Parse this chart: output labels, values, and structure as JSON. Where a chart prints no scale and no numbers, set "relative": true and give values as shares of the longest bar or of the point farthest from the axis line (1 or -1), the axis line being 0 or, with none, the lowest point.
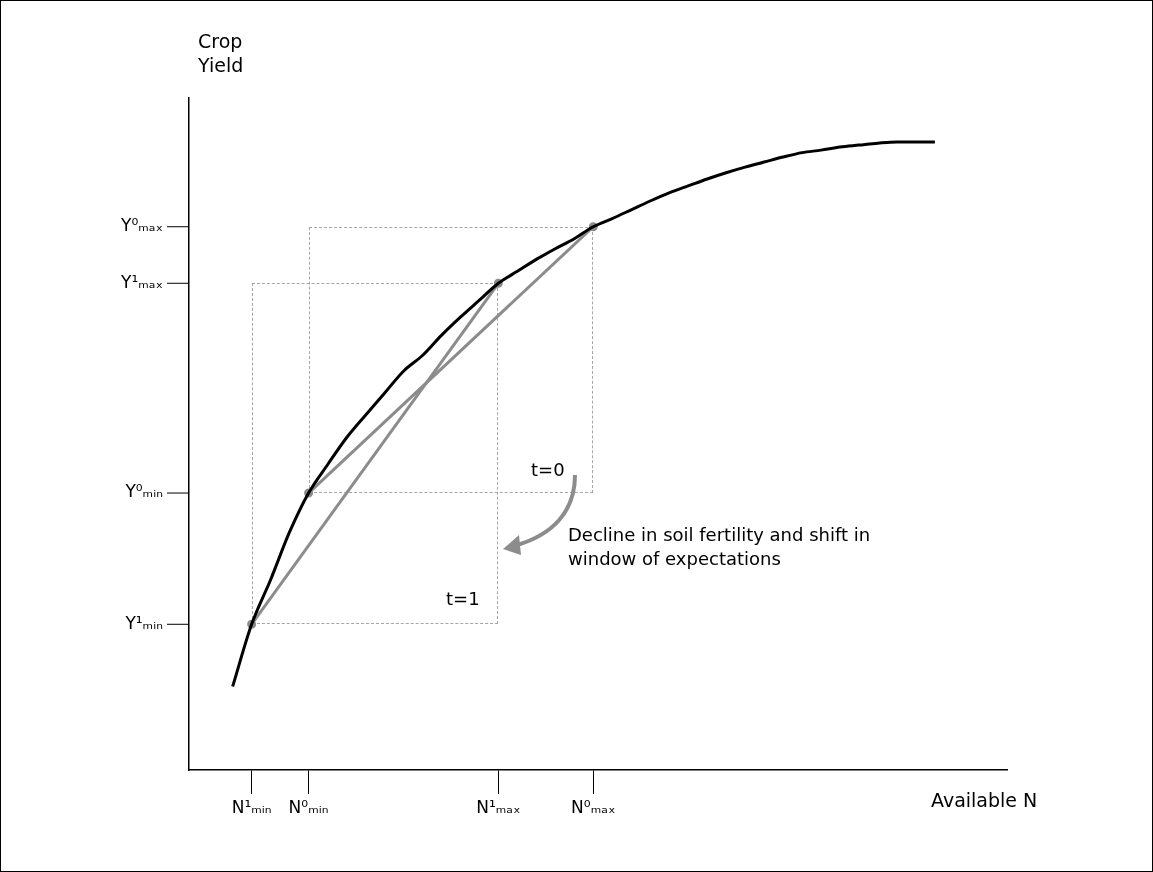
{
  "chart_data": {
    "type": "line",
    "relative": true,
    "xlabel": "Available N",
    "ylabel": "Crop Yield",
    "categories": [
      null,
      "N¹ₘᵢₙ",
      null,
      null,
      "N⁰ₘᵢₙ",
      null,
      null,
      null,
      null,
      null,
      null,
      null,
      null,
      null,
      "N¹ₘₐₓ",
      null,
      null,
      null,
      null,
      "N⁰ₘₐₓ",
      null,
      null,
      null,
      null,
      null,
      null,
      null,
      null,
      null,
      null,
      null,
      null,
      null,
      null,
      null,
      null,
      null,
      null
    ],
    "grid": false,
    "legend": false,
    "series": [
      {
        "type": "line",
        "color": "#000000",
        "marker": "none",
        "line_style": "solid",
        "values": [
          0.133,
          0.232,
          0.303,
          0.379,
          0.441,
          0.486,
          0.529,
          0.565,
          0.6,
          0.635,
          0.66,
          0.692,
          0.721,
          0.748,
          0.775,
          0.794,
          0.813,
          0.83,
          0.846,
          0.865,
          0.878,
          0.892,
          0.906,
          0.919,
          0.93,
          0.941,
          0.951,
          0.96,
          0.968,
          0.976,
          0.983,
          0.987,
          0.992,
          0.995,
          0.998,
          1,
          1,
          1
        ]
      },
      {
        "type": "line",
        "color": "#8c8c8c",
        "marker": "circle",
        "line_style": "solid",
        "values": [
          null,
          0.232,
          null,
          null,
          null,
          null,
          null,
          null,
          null,
          null,
          null,
          null,
          null,
          null,
          0.775,
          null,
          null,
          null,
          null,
          null,
          null,
          null,
          null,
          null,
          null,
          null,
          null,
          null,
          null,
          null,
          null,
          null,
          null,
          null,
          null,
          null,
          null,
          null
        ]
      },
      {
        "type": "line",
        "color": "#8c8c8c",
        "marker": "circle",
        "line_style": "solid",
        "values": [
          null,
          null,
          null,
          null,
          0.441,
          null,
          null,
          null,
          null,
          null,
          null,
          null,
          null,
          null,
          null,
          null,
          null,
          null,
          null,
          0.865,
          null,
          null,
          null,
          null,
          null,
          null,
          null,
          null,
          null,
          null,
          null,
          null,
          null,
          null,
          null,
          null,
          null,
          null
        ]
      }
    ],
    "annotations": [
      "Y¹ₘᵢₙ",
      "Y⁰ₘᵢₙ",
      "Y¹ₘₐₓ",
      "Y⁰ₘₐₓ",
      "t=0",
      "t=1",
      "Decline in soil fertility and shift in window of expectations"
    ]
  }
}
